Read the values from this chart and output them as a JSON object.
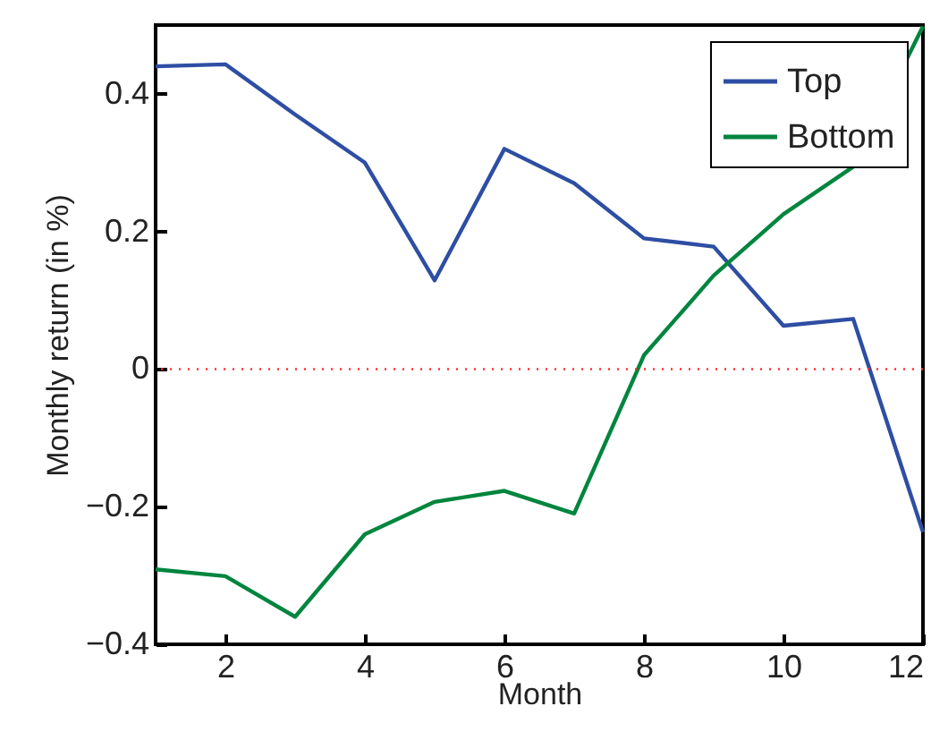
{
  "chart_data": {
    "type": "line",
    "xlabel": "Month",
    "ylabel": "Monthly return (in %)",
    "x": [
      1,
      2,
      3,
      4,
      5,
      6,
      7,
      8,
      9,
      10,
      11,
      12
    ],
    "series": [
      {
        "name": "Top",
        "color": "#2e4ea3",
        "values": [
          0.44,
          0.443,
          0.37,
          0.3,
          0.129,
          0.32,
          0.27,
          0.19,
          0.178,
          0.063,
          0.073,
          -0.237
        ]
      },
      {
        "name": "Bottom",
        "color": "#00853e",
        "values": [
          -0.291,
          -0.301,
          -0.36,
          -0.24,
          -0.193,
          -0.177,
          -0.21,
          0.02,
          0.136,
          0.225,
          0.294,
          0.498
        ]
      }
    ],
    "xlim": [
      1,
      12
    ],
    "xticks": [
      2,
      4,
      6,
      8,
      10,
      12
    ],
    "ylim": [
      -0.4,
      0.5
    ],
    "yticks": [
      {
        "value": -0.4,
        "label": "−0.4"
      },
      {
        "value": -0.2,
        "label": "−0.2"
      },
      0,
      0.2,
      0.4
    ],
    "ref_lines": [
      {
        "axis": "y",
        "value": 0,
        "color": "#ff3030",
        "line_style": "dotted"
      }
    ],
    "legend": "top right",
    "grid": false,
    "marker": "none",
    "line_style": "solid"
  }
}
